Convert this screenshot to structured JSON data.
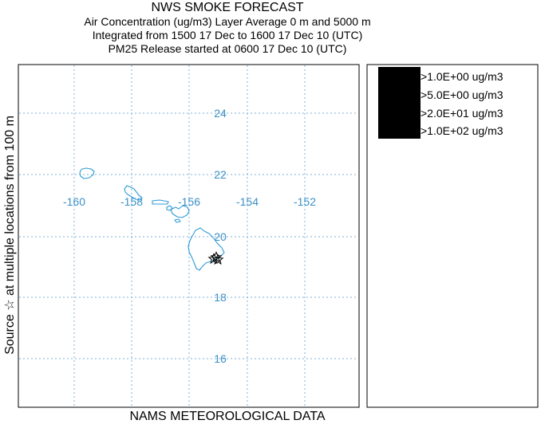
{
  "header": {
    "title": "NWS SMOKE FORECAST",
    "line1": "Air Concentration (ug/m3) Layer Average    0 m and  5000 m",
    "line2": "Integrated from 1500 17 Dec to 1600 17 Dec 10 (UTC)",
    "line3": "PM25 Release started at 0600 17 Dec 10 (UTC)"
  },
  "side_label": "Source ☆  at multiple locations     from   100 m",
  "footer_label": "NAMS METEOROLOGICAL DATA",
  "map": {
    "longitude_labels": [
      "-160",
      "-158",
      "-156",
      "-154",
      "-152"
    ],
    "latitude_labels": [
      "24",
      "22",
      "20",
      "18",
      "16"
    ],
    "grid_color": "#7fb2d8",
    "label_color": "#3a8fc8",
    "coast_color": "#2e9bd6",
    "source_marker": "star-icon"
  },
  "legend": {
    "items": [
      {
        "label": ">1.0E+00 ug/m3",
        "color": "#000000"
      },
      {
        "label": ">5.0E+00 ug/m3",
        "color": "#000000"
      },
      {
        "label": ">2.0E+01 ug/m3",
        "color": "#000000"
      },
      {
        "label": ">1.0E+02 ug/m3",
        "color": "#000000"
      }
    ]
  }
}
